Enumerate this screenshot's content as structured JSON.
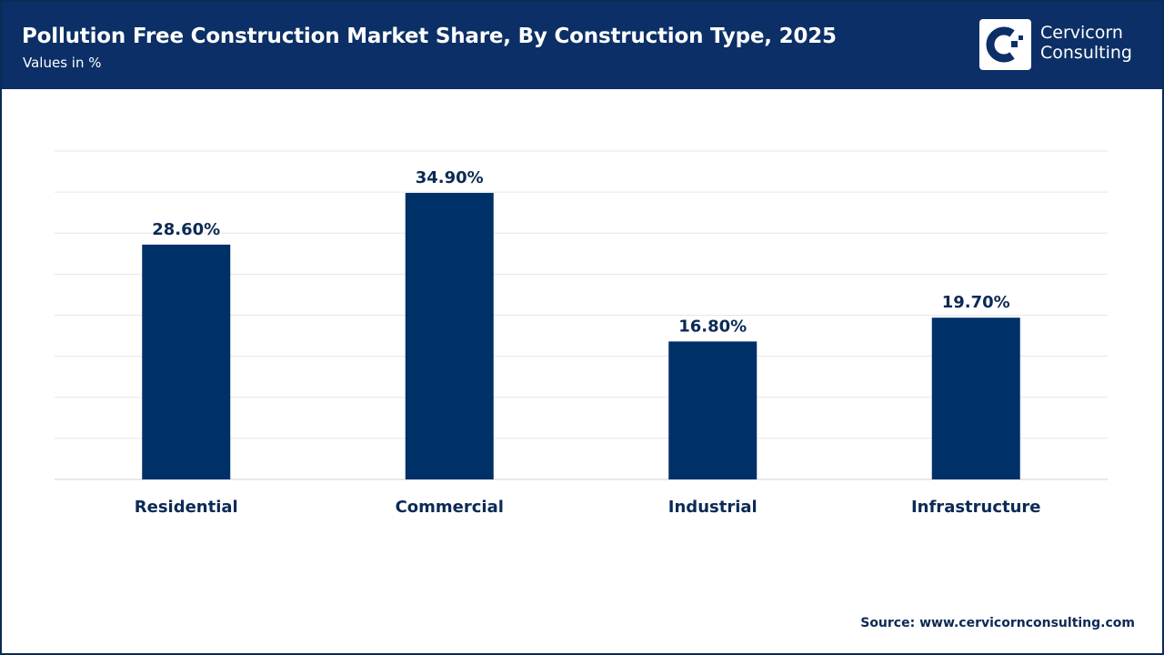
{
  "header": {
    "title": "Pollution Free Construction Market Share, By Construction Type, 2025",
    "subtitle": "Values in %",
    "logo_text_line1": "Cervicorn",
    "logo_text_line2": "Consulting"
  },
  "colors": {
    "header": "#0b2f66",
    "bar": "#003068",
    "label": "#0b2a55"
  },
  "chart_data": {
    "type": "bar",
    "categories": [
      "Residential",
      "Commercial",
      "Industrial",
      "Infrastructure"
    ],
    "values": [
      28.6,
      34.9,
      16.8,
      19.7
    ],
    "data_labels": [
      "28.60%",
      "34.90%",
      "16.80%",
      "19.70%"
    ],
    "title": "Pollution Free Construction Market Share, By Construction Type, 2025",
    "ylim": [
      0,
      40
    ],
    "grid": true,
    "y_tick_labels_visible": false
  },
  "footer": {
    "source": "Source: www.cervicornconsulting.com"
  }
}
